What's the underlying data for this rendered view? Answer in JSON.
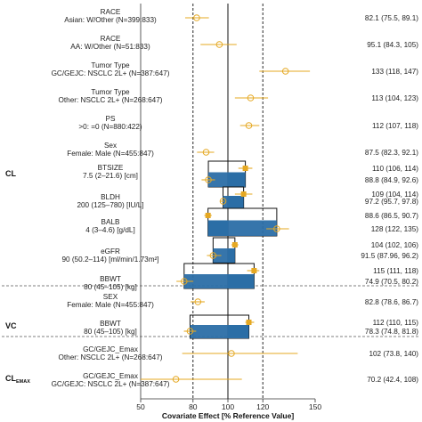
{
  "chart_data": {
    "type": "forest",
    "xlabel": "Covariate Effect [% Reference Value]",
    "xlim": [
      50,
      150
    ],
    "xticks": [
      50,
      80,
      100,
      120,
      150
    ],
    "reference_line": 100,
    "dashed_lines": [
      80,
      120
    ],
    "colors": {
      "point": "#e5a822",
      "bar": "#2b6ea6",
      "line": "#222222"
    },
    "groups": [
      {
        "name": "CL",
        "span": [
          0,
          13
        ]
      },
      {
        "name": "VC",
        "span": [
          14,
          16
        ]
      },
      {
        "name": "CL",
        "sub": "EMAX",
        "span": [
          17,
          18
        ]
      }
    ],
    "rows": [
      {
        "l1": "RACE",
        "l2": "Asian: W/Other (N=399:833)",
        "est": 82.1,
        "lo": 75.5,
        "hi": 89.1,
        "text": "82.1 (75.5, 89.1)"
      },
      {
        "l1": "RACE",
        "l2": "AA: W/Other (N=51:833)",
        "est": 95.1,
        "lo": 84.3,
        "hi": 105,
        "text": "95.1 (84.3, 105)"
      },
      {
        "l1": "Tumor Type",
        "l2": "GC/GEJC: NSCLC 2L+ (N=387:647)",
        "est": 133,
        "lo": 118,
        "hi": 147,
        "text": "133 (118, 147)"
      },
      {
        "l1": "Tumor Type",
        "l2": "Other: NSCLC 2L+ (N=268:647)",
        "est": 113,
        "lo": 104,
        "hi": 123,
        "text": "113 (104, 123)"
      },
      {
        "l1": "PS",
        "l2": ">0: =0 (N=880:422)",
        "est": 112,
        "lo": 107,
        "hi": 118,
        "text": "112 (107, 118)"
      },
      {
        "l1": "Sex",
        "l2": "Female: Male (N=455:847)",
        "est": 87.5,
        "lo": 82.3,
        "hi": 92.1,
        "text": "87.5 (82.3, 92.1)"
      },
      {
        "l1": "BTSIZE",
        "l2": "7.5 (2–21.6) [cm]",
        "est": 110,
        "lo": 106,
        "hi": 114,
        "text": "110 (106, 114)",
        "est2": 88.8,
        "lo2": 84.9,
        "hi2": 92.6,
        "text2": "88.8 (84.9, 92.6)"
      },
      {
        "l1": "BLDH",
        "l2": "200 (125–780) [IU/L]",
        "est": 109,
        "lo": 104,
        "hi": 114,
        "text": "109 (104, 114)",
        "est2": 97.2,
        "lo2": 95.7,
        "hi2": 97.8,
        "text2": "97.2 (95.7, 97.8)"
      },
      {
        "l1": "BALB",
        "l2": "4 (3–4.6) [g/dL]",
        "est": 88.6,
        "lo": 86.5,
        "hi": 90.7,
        "text": "88.6 (86.5, 90.7)",
        "est2": 128,
        "lo2": 122,
        "hi2": 135,
        "text2": "128 (122, 135)"
      },
      {
        "l1": "eGFR",
        "l2": "90 (50.2–114) [ml/min/1.73m²]",
        "est": 104,
        "lo": 102,
        "hi": 106,
        "text": "104 (102, 106)",
        "est2": 91.5,
        "lo2": 87.96,
        "hi2": 96.2,
        "text2": "91.5 (87.96, 96.2)"
      },
      {
        "l1": "BBWT",
        "l2": "80 (45–105) [kg]",
        "est": 115,
        "lo": 111,
        "hi": 118,
        "text": "115 (111, 118)",
        "est2": 74.9,
        "lo2": 70.5,
        "hi2": 80.2,
        "text2": "74.9 (70.5, 80.2)"
      },
      {
        "l1": "SEX",
        "l2": "Female: Male (N=455:847)",
        "est": 82.8,
        "lo": 78.6,
        "hi": 86.7,
        "text": "82.8 (78.6, 86.7)"
      },
      {
        "l1": "BBWT",
        "l2": "80 (45–105) [kg]",
        "est": 112,
        "lo": 110,
        "hi": 115,
        "text": "112 (110, 115)",
        "est2": 78.3,
        "lo2": 74.8,
        "hi2": 81.8,
        "text2": "78.3 (74.8, 81.8)"
      },
      {
        "l1": "GC/GEJC_Emax",
        "l2": "Other: NSCLC 2L+ (N=268:647)",
        "est": 102,
        "lo": 73.8,
        "hi": 140,
        "text": "102 (73.8, 140)"
      },
      {
        "l1": "GC/GEJC_Emax",
        "l2": "GC/GEJC: NSCLC 2L+ (N=387:647)",
        "est": 70.2,
        "lo": 42.4,
        "hi": 108,
        "text": "70.2 (42.4, 108)"
      }
    ]
  }
}
